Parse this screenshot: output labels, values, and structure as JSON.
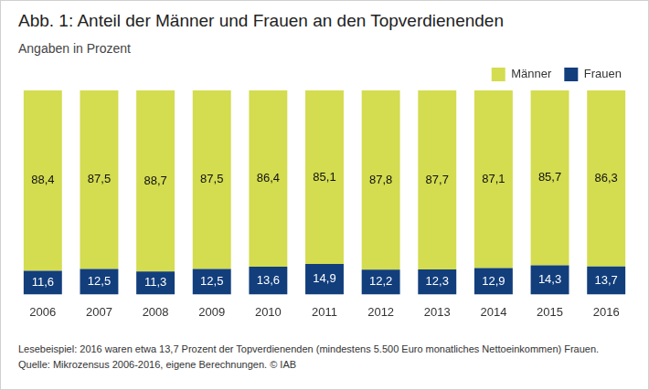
{
  "chart_data": {
    "type": "bar",
    "title": "Abb. 1: Anteil der Männer und Frauen an den Topverdienenden",
    "subtitle": "Angaben in Prozent",
    "notes": [
      "Lesebeispiel: 2016 waren etwa 13,7 Prozent der Topverdienenden (mindestens 5.500 Euro monatliches Nettoeinkommen) Frauen.",
      "Quelle: Mikrozensus 2006-2016, eigene Berechnungen. © IAB"
    ],
    "categories": [
      "2006",
      "2007",
      "2008",
      "2009",
      "2010",
      "2011",
      "2012",
      "2013",
      "2014",
      "2015",
      "2016"
    ],
    "series": [
      {
        "name": "Männer",
        "color": "#d4dc50",
        "values": [
          88.4,
          87.5,
          88.7,
          87.5,
          86.4,
          85.1,
          87.8,
          87.7,
          87.1,
          85.7,
          86.3
        ],
        "value_labels": [
          "88,4",
          "87,5",
          "88,7",
          "87,5",
          "86,4",
          "85,1",
          "87,8",
          "87,7",
          "87,1",
          "85,7",
          "86,3"
        ]
      },
      {
        "name": "Frauen",
        "color": "#123e7c",
        "values": [
          11.6,
          12.5,
          11.3,
          12.5,
          13.6,
          14.9,
          12.2,
          12.3,
          12.9,
          14.3,
          13.7
        ],
        "value_labels": [
          "11,6",
          "12,5",
          "11,3",
          "12,5",
          "13,6",
          "14,9",
          "12,2",
          "12,3",
          "12,9",
          "14,3",
          "13,7"
        ]
      }
    ],
    "ylim": [
      0,
      100
    ],
    "stacked": true,
    "data_labels": true,
    "tick_labels": "x",
    "grid": false,
    "legend": "top-right"
  }
}
